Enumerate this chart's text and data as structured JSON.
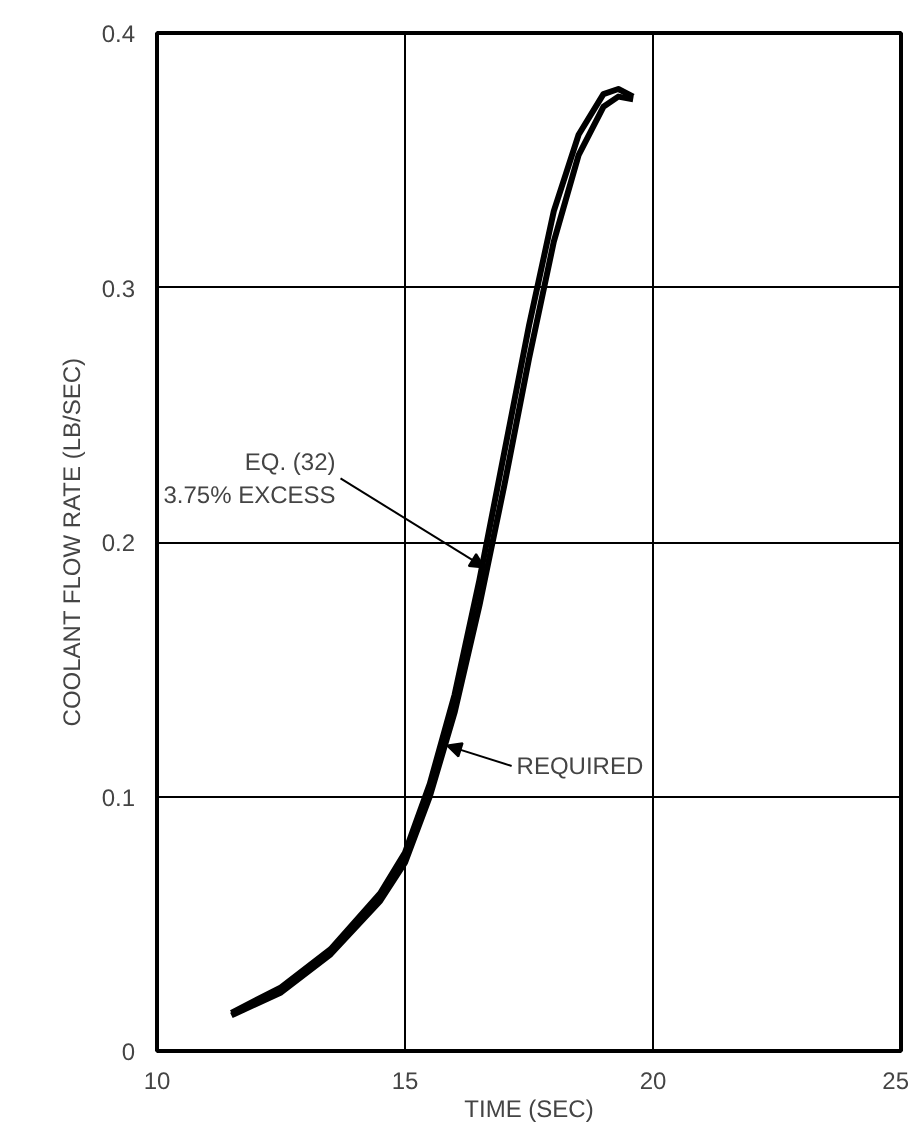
{
  "chart_data": {
    "type": "line",
    "xlabel": "TIME (SEC)",
    "ylabel": "COOLANT FLOW RATE (LB/SEC)",
    "xlim": [
      10,
      25
    ],
    "xticks": [
      10,
      15,
      20,
      25
    ],
    "ylim": [
      0,
      0.4
    ],
    "yticks": [
      0,
      0.1,
      0.2,
      0.3,
      0.4
    ],
    "grid": true,
    "line_style": "solid",
    "series": [
      {
        "color": "#000000",
        "x": [
          11.5,
          12.5,
          13.5,
          14.5,
          15,
          15.5,
          16,
          16.5,
          17,
          17.5,
          18,
          18.5,
          19,
          19.3,
          19.6
        ],
        "values": [
          0.015,
          0.025,
          0.04,
          0.062,
          0.078,
          0.105,
          0.14,
          0.185,
          0.235,
          0.285,
          0.33,
          0.36,
          0.376,
          0.378,
          0.375
        ]
      },
      {
        "color": "#000000",
        "x": [
          11.5,
          12.5,
          13.5,
          14.5,
          15,
          15.5,
          16,
          16.5,
          17,
          17.5,
          18,
          18.5,
          19,
          19.3,
          19.6
        ],
        "values": [
          0.014,
          0.023,
          0.038,
          0.059,
          0.074,
          0.1,
          0.133,
          0.175,
          0.222,
          0.272,
          0.318,
          0.352,
          0.371,
          0.375,
          0.374
        ]
      }
    ],
    "annotations": [
      {
        "text": "EQ. (32)\n3.75% EXCESS",
        "x": 16.6,
        "y": 0.19
      },
      {
        "text": "REQUIRED",
        "x": 15.85,
        "y": 0.12
      }
    ]
  }
}
